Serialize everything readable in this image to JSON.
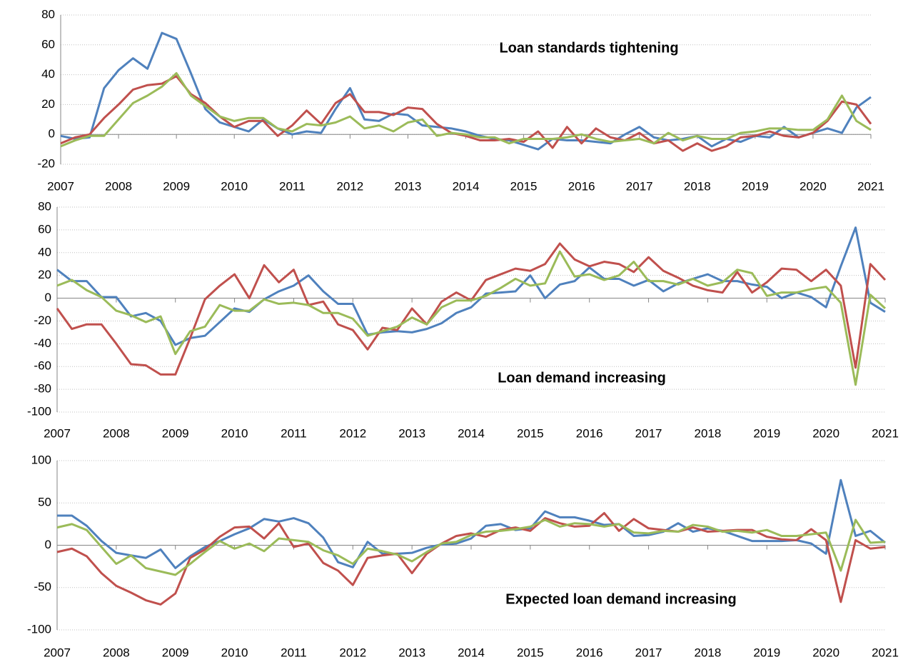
{
  "chart_data": [
    {
      "type": "line",
      "annotation": "Loan standards tightening",
      "x": [
        2007,
        2007.25,
        2007.5,
        2007.75,
        2008,
        2008.25,
        2008.5,
        2008.75,
        2009,
        2009.25,
        2009.5,
        2009.75,
        2010,
        2010.25,
        2010.5,
        2010.75,
        2011,
        2011.25,
        2011.5,
        2011.75,
        2012,
        2012.25,
        2012.5,
        2012.75,
        2013,
        2013.25,
        2013.5,
        2013.75,
        2014,
        2014.25,
        2014.5,
        2014.75,
        2015,
        2015.25,
        2015.5,
        2015.75,
        2016,
        2016.25,
        2016.5,
        2016.75,
        2017,
        2017.25,
        2017.5,
        2017.75,
        2018,
        2018.25,
        2018.5,
        2018.75,
        2019,
        2019.25,
        2019.5,
        2019.75,
        2020,
        2020.25,
        2020.5,
        2020.75,
        2021
      ],
      "xlim": [
        2007,
        2021
      ],
      "xticks": [
        2007,
        2008,
        2009,
        2010,
        2011,
        2012,
        2013,
        2014,
        2015,
        2016,
        2017,
        2018,
        2019,
        2020,
        2021
      ],
      "ylim": [
        -20,
        80
      ],
      "yticks": [
        -20,
        0,
        20,
        40,
        60,
        80
      ],
      "grid": true,
      "series": [
        {
          "color": "#4f81bd",
          "values": [
            -1,
            -3,
            -2,
            31,
            43,
            51,
            44,
            68,
            64,
            41,
            17,
            8,
            5,
            2,
            10,
            4,
            0,
            2,
            1,
            17,
            31,
            10,
            9,
            14,
            13,
            6,
            5,
            4,
            2,
            -1,
            -3,
            -4,
            -7,
            -10,
            -3,
            -4,
            -4,
            -5,
            -6,
            0,
            5,
            -2,
            -4,
            -3,
            -1,
            -8,
            -3,
            -5,
            -1,
            -2,
            5,
            -2,
            1,
            4,
            1,
            18,
            25
          ]
        },
        {
          "color": "#c0504d",
          "values": [
            -6,
            -2,
            0,
            11,
            20,
            30,
            33,
            34,
            39,
            27,
            21,
            12,
            5,
            9,
            9,
            -1,
            6,
            16,
            7,
            21,
            27,
            15,
            15,
            13,
            18,
            17,
            7,
            1,
            -1,
            -4,
            -4,
            -3,
            -5,
            2,
            -9,
            5,
            -6,
            4,
            -2,
            -4,
            1,
            -6,
            -4,
            -11,
            -6,
            -11,
            -8,
            -2,
            -1,
            2,
            -1,
            -2,
            1,
            9,
            22,
            20,
            7
          ]
        },
        {
          "color": "#9bbb59",
          "values": [
            -8,
            -4,
            -1,
            -1,
            10,
            21,
            26,
            32,
            41,
            26,
            19,
            12,
            9,
            11,
            11,
            4,
            2,
            7,
            6,
            8,
            12,
            4,
            6,
            2,
            8,
            10,
            -1,
            1,
            0,
            -2,
            -2,
            -6,
            -3,
            -3,
            -3,
            -2,
            0,
            -3,
            -5,
            -4,
            -3,
            -6,
            1,
            -4,
            -1,
            -3,
            -3,
            1,
            2,
            4,
            4,
            3,
            3,
            10,
            26,
            9,
            3
          ]
        }
      ]
    },
    {
      "type": "line",
      "annotation": "Loan demand increasing",
      "x": [
        2007,
        2007.25,
        2007.5,
        2007.75,
        2008,
        2008.25,
        2008.5,
        2008.75,
        2009,
        2009.25,
        2009.5,
        2009.75,
        2010,
        2010.25,
        2010.5,
        2010.75,
        2011,
        2011.25,
        2011.5,
        2011.75,
        2012,
        2012.25,
        2012.5,
        2012.75,
        2013,
        2013.25,
        2013.5,
        2013.75,
        2014,
        2014.25,
        2014.5,
        2014.75,
        2015,
        2015.25,
        2015.5,
        2015.75,
        2016,
        2016.25,
        2016.5,
        2016.75,
        2017,
        2017.25,
        2017.5,
        2017.75,
        2018,
        2018.25,
        2018.5,
        2018.75,
        2019,
        2019.25,
        2019.5,
        2019.75,
        2020,
        2020.25,
        2020.5,
        2020.75,
        2021
      ],
      "xlim": [
        2007,
        2021
      ],
      "xticks": [
        2007,
        2008,
        2009,
        2010,
        2011,
        2012,
        2013,
        2014,
        2015,
        2016,
        2017,
        2018,
        2019,
        2020,
        2021
      ],
      "ylim": [
        -100,
        80
      ],
      "yticks": [
        -100,
        -80,
        -60,
        -40,
        -20,
        0,
        20,
        40,
        60,
        80
      ],
      "grid": true,
      "series": [
        {
          "color": "#4f81bd",
          "values": [
            25,
            15,
            15,
            1,
            1,
            -16,
            -13,
            -20,
            -41,
            -35,
            -33,
            -21,
            -9,
            -12,
            -1,
            6,
            11,
            20,
            6,
            -5,
            -5,
            -32,
            -30,
            -29,
            -30,
            -27,
            -22,
            -13,
            -8,
            4,
            5,
            6,
            20,
            0,
            12,
            15,
            27,
            17,
            17,
            11,
            16,
            6,
            13,
            17,
            21,
            15,
            15,
            12,
            10,
            0,
            5,
            1,
            -8,
            28,
            62,
            -4,
            -12
          ]
        },
        {
          "color": "#c0504d",
          "values": [
            -9,
            -27,
            -23,
            -23,
            -40,
            -58,
            -59,
            -67,
            -67,
            -35,
            -1,
            11,
            21,
            0,
            29,
            14,
            25,
            -6,
            -3,
            -23,
            -28,
            -45,
            -26,
            -28,
            -9,
            -23,
            -3,
            5,
            -2,
            16,
            21,
            26,
            24,
            30,
            48,
            34,
            28,
            32,
            30,
            23,
            36,
            24,
            18,
            11,
            7,
            5,
            23,
            5,
            14,
            26,
            25,
            15,
            25,
            11,
            -61,
            30,
            16
          ]
        },
        {
          "color": "#9bbb59",
          "values": [
            11,
            16,
            7,
            1,
            -11,
            -15,
            -21,
            -16,
            -49,
            -29,
            -25,
            -6,
            -11,
            -11,
            -1,
            -5,
            -4,
            -6,
            -13,
            -13,
            -18,
            -33,
            -29,
            -25,
            -17,
            -23,
            -8,
            -2,
            -2,
            2,
            9,
            17,
            11,
            13,
            41,
            19,
            21,
            16,
            20,
            32,
            15,
            15,
            12,
            17,
            11,
            14,
            25,
            22,
            2,
            5,
            5,
            8,
            10,
            -4,
            -76,
            3,
            -9
          ]
        }
      ]
    },
    {
      "type": "line",
      "annotation": "Expected loan demand increasing",
      "x": [
        2007,
        2007.25,
        2007.5,
        2007.75,
        2008,
        2008.25,
        2008.5,
        2008.75,
        2009,
        2009.25,
        2009.5,
        2009.75,
        2010,
        2010.25,
        2010.5,
        2010.75,
        2011,
        2011.25,
        2011.5,
        2011.75,
        2012,
        2012.25,
        2012.5,
        2012.75,
        2013,
        2013.25,
        2013.5,
        2013.75,
        2014,
        2014.25,
        2014.5,
        2014.75,
        2015,
        2015.25,
        2015.5,
        2015.75,
        2016,
        2016.25,
        2016.5,
        2016.75,
        2017,
        2017.25,
        2017.5,
        2017.75,
        2018,
        2018.25,
        2018.5,
        2018.75,
        2019,
        2019.25,
        2019.5,
        2019.75,
        2020,
        2020.25,
        2020.5,
        2020.75,
        2021
      ],
      "xlim": [
        2007,
        2021
      ],
      "xticks": [
        2007,
        2008,
        2009,
        2010,
        2011,
        2012,
        2013,
        2014,
        2015,
        2016,
        2017,
        2018,
        2019,
        2020,
        2021
      ],
      "ylim": [
        -100,
        100
      ],
      "yticks": [
        -100,
        -50,
        0,
        50,
        100
      ],
      "grid": true,
      "series": [
        {
          "color": "#4f81bd",
          "values": [
            35,
            35,
            23,
            5,
            -9,
            -12,
            -15,
            -5,
            -27,
            -13,
            -2,
            5,
            13,
            20,
            31,
            28,
            32,
            26,
            9,
            -20,
            -26,
            4,
            -10,
            -10,
            -9,
            -3,
            1,
            2,
            8,
            23,
            25,
            18,
            20,
            40,
            33,
            33,
            29,
            24,
            25,
            11,
            12,
            16,
            26,
            16,
            20,
            17,
            11,
            5,
            5,
            5,
            6,
            2,
            -10,
            77,
            11,
            17,
            3
          ]
        },
        {
          "color": "#c0504d",
          "values": [
            -8,
            -4,
            -13,
            -33,
            -48,
            -56,
            -65,
            -70,
            -57,
            -15,
            -5,
            10,
            21,
            22,
            8,
            26,
            -2,
            2,
            -21,
            -30,
            -47,
            -15,
            -12,
            -10,
            -33,
            -10,
            2,
            11,
            14,
            10,
            18,
            21,
            17,
            32,
            26,
            22,
            23,
            38,
            17,
            31,
            20,
            18,
            16,
            21,
            16,
            17,
            18,
            18,
            10,
            7,
            6,
            19,
            6,
            -67,
            6,
            -4,
            -2
          ]
        },
        {
          "color": "#9bbb59",
          "values": [
            21,
            25,
            18,
            -2,
            -22,
            -12,
            -27,
            -31,
            -35,
            -22,
            -8,
            5,
            -4,
            2,
            -7,
            8,
            6,
            4,
            -6,
            -12,
            -22,
            -4,
            -7,
            -11,
            -19,
            -8,
            2,
            4,
            12,
            16,
            17,
            19,
            22,
            30,
            22,
            26,
            25,
            22,
            25,
            15,
            14,
            17,
            16,
            24,
            22,
            16,
            17,
            15,
            18,
            11,
            11,
            13,
            15,
            -30,
            30,
            3,
            4
          ]
        }
      ]
    }
  ]
}
